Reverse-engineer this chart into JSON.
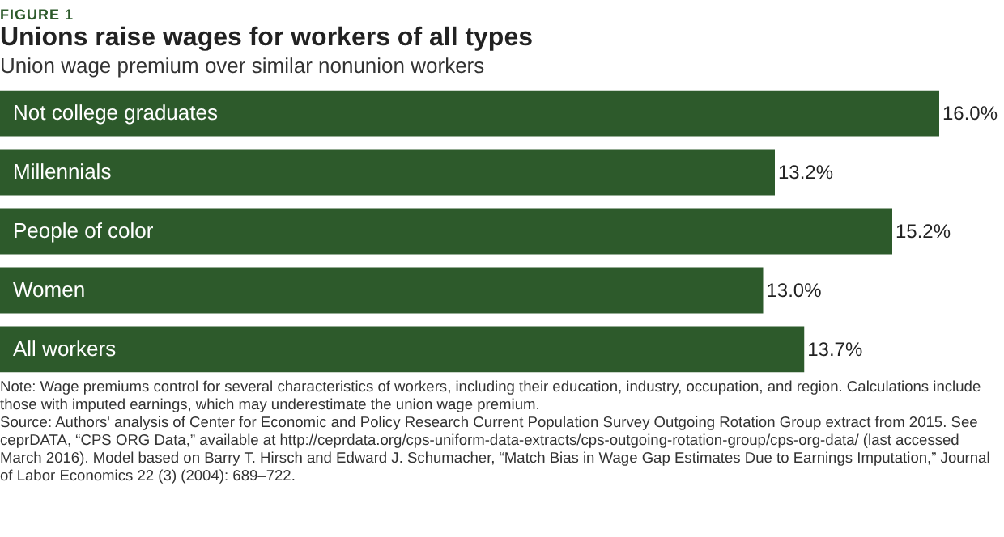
{
  "chart_data": {
    "type": "bar",
    "orientation": "horizontal",
    "title": "Unions raise wages for workers of all types",
    "subtitle": "Union wage premium over similar nonunion workers",
    "categories": [
      "Not college graduates",
      "Millennials",
      "People of color",
      "Women",
      "All workers"
    ],
    "values": [
      16.0,
      13.2,
      15.2,
      13.0,
      13.7
    ],
    "value_labels": [
      "16.0%",
      "13.2%",
      "15.2%",
      "13.0%",
      "13.7%"
    ],
    "color": "#2d5a2b",
    "annotations": [
      "FIGURE 1",
      "Note: Wage premiums control for several characteristics of workers, including their education, industry, occupation, and region. Calculations include those with imputed earnings, which may underestimate the union wage premium.",
      "Source: Authors' analysis of Center for Economic and Policy Research Current Population Survey Outgoing Rotation Group extract from 2015. See ceprDATA, “CPS ORG Data,” available at http://ceprdata.org/cps-uniform-data-extracts/cps-outgoing-rotation-group/cps-org-data/ (last accessed March 2016). Model based on Barry T. Hirsch and Edward J. Schumacher, “Match Bias in Wage Gap Estimates Due to Earnings Imputation,” Journal of Labor Economics 22 (3) (2004): 689–722."
    ]
  }
}
